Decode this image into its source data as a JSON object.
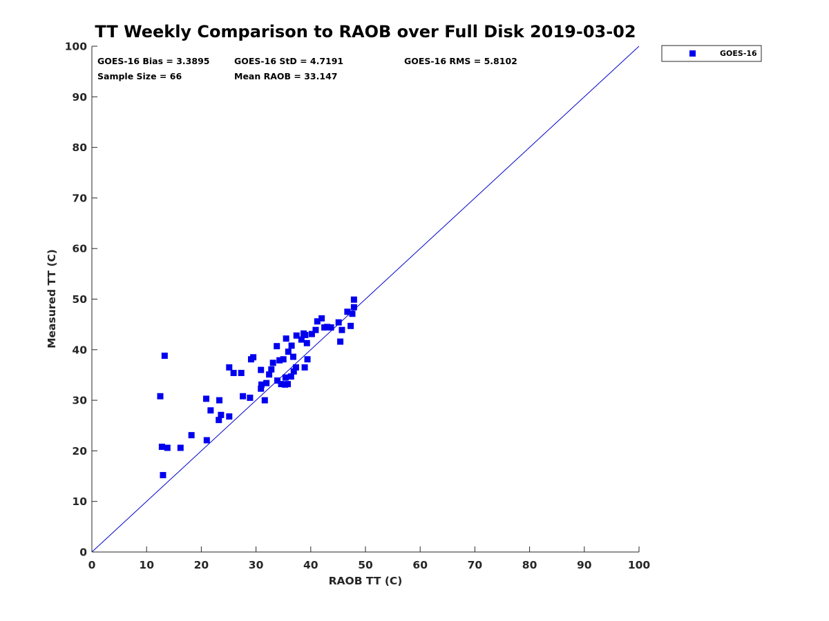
{
  "chart_data": {
    "type": "scatter",
    "title": "TT Weekly Comparison to RAOB over Full Disk 2019-03-02",
    "xlabel": "RAOB TT (C)",
    "ylabel": "Measured TT (C)",
    "xlim": [
      0,
      100
    ],
    "ylim": [
      0,
      100
    ],
    "xticks": [
      "0",
      "10",
      "20",
      "30",
      "40",
      "50",
      "60",
      "70",
      "80",
      "90",
      "100"
    ],
    "yticks": [
      "0",
      "10",
      "20",
      "30",
      "40",
      "50",
      "60",
      "70",
      "80",
      "90",
      "100"
    ],
    "grid": false,
    "legend_position": "top-right outside",
    "stats": {
      "bias": "GOES-16 Bias = 3.3895",
      "std": "GOES-16 StD = 4.7191",
      "rms": "GOES-16 RMS = 5.8102",
      "sample_size": "Sample Size = 66",
      "mean_raob": "Mean RAOB = 33.147"
    },
    "reference_line": {
      "name": "1:1",
      "x": [
        0,
        100
      ],
      "y": [
        0,
        100
      ],
      "color": "#0000cc"
    },
    "series": [
      {
        "name": "GOES-16",
        "marker": "square",
        "color": "#0000ee",
        "points": [
          [
            12.5,
            30.8
          ],
          [
            12.8,
            20.8
          ],
          [
            13.0,
            15.2
          ],
          [
            13.3,
            38.8
          ],
          [
            13.8,
            20.6
          ],
          [
            16.2,
            20.6
          ],
          [
            18.2,
            23.1
          ],
          [
            20.9,
            30.3
          ],
          [
            21.0,
            22.1
          ],
          [
            21.7,
            28.0
          ],
          [
            23.2,
            26.1
          ],
          [
            23.3,
            30.0
          ],
          [
            23.6,
            27.1
          ],
          [
            25.1,
            36.5
          ],
          [
            25.1,
            26.8
          ],
          [
            25.9,
            35.4
          ],
          [
            27.3,
            35.4
          ],
          [
            27.6,
            30.8
          ],
          [
            28.9,
            30.5
          ],
          [
            29.1,
            38.1
          ],
          [
            29.5,
            38.5
          ],
          [
            30.9,
            32.3
          ],
          [
            30.9,
            36.0
          ],
          [
            31.0,
            33.1
          ],
          [
            31.6,
            30.0
          ],
          [
            31.9,
            33.4
          ],
          [
            32.4,
            35.1
          ],
          [
            32.8,
            36.1
          ],
          [
            33.1,
            37.4
          ],
          [
            33.8,
            40.7
          ],
          [
            33.9,
            33.9
          ],
          [
            34.3,
            37.9
          ],
          [
            34.6,
            33.2
          ],
          [
            35.0,
            38.1
          ],
          [
            35.3,
            33.1
          ],
          [
            35.4,
            34.5
          ],
          [
            35.5,
            42.2
          ],
          [
            35.8,
            33.2
          ],
          [
            35.9,
            39.6
          ],
          [
            36.4,
            34.7
          ],
          [
            36.5,
            40.8
          ],
          [
            36.8,
            38.6
          ],
          [
            36.9,
            35.7
          ],
          [
            37.3,
            36.5
          ],
          [
            37.4,
            42.8
          ],
          [
            38.3,
            42.0
          ],
          [
            38.7,
            43.2
          ],
          [
            38.9,
            36.5
          ],
          [
            39.0,
            42.9
          ],
          [
            39.3,
            41.3
          ],
          [
            39.4,
            38.1
          ],
          [
            40.2,
            43.1
          ],
          [
            40.9,
            43.9
          ],
          [
            41.2,
            45.6
          ],
          [
            42.0,
            46.2
          ],
          [
            42.5,
            44.4
          ],
          [
            43.0,
            44.5
          ],
          [
            43.7,
            44.4
          ],
          [
            45.1,
            45.4
          ],
          [
            45.4,
            41.6
          ],
          [
            45.7,
            43.9
          ],
          [
            46.7,
            47.5
          ],
          [
            47.3,
            44.7
          ],
          [
            47.6,
            47.1
          ],
          [
            47.9,
            49.9
          ],
          [
            47.9,
            48.4
          ]
        ]
      }
    ]
  }
}
